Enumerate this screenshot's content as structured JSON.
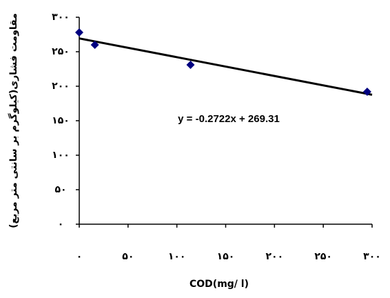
{
  "chart_data": {
    "type": "scatter",
    "xlabel": "COD(mg/ l)",
    "ylabel": "مقاومت فشاری(کیلوگرم بر سانتی متر مربع)",
    "series": [
      {
        "color": "#000080",
        "x": [
          0,
          16,
          114,
          295
        ],
        "values": [
          278,
          260,
          231,
          192
        ]
      }
    ],
    "trendline": {
      "slope": -0.2722,
      "intercept": 269.31,
      "label": "y = -0.2722x + 269.31",
      "color": "#000000"
    },
    "xlim": [
      0,
      300
    ],
    "xticks": [
      {
        "value": 0,
        "label": "۰"
      },
      {
        "value": 50,
        "label": "۵۰"
      },
      {
        "value": 100,
        "label": "۱۰۰"
      },
      {
        "value": 150,
        "label": "۱۵۰"
      },
      {
        "value": 200,
        "label": "۲۰۰"
      },
      {
        "value": 250,
        "label": "۲۵۰"
      },
      {
        "value": 300,
        "label": "۳۰۰"
      }
    ],
    "ylim": [
      0,
      300
    ],
    "yticks": [
      {
        "value": 0,
        "label": "۰"
      },
      {
        "value": 50,
        "label": "۵۰"
      },
      {
        "value": 100,
        "label": "۱۰۰"
      },
      {
        "value": 150,
        "label": "۱۵۰"
      },
      {
        "value": 200,
        "label": "۲۰۰"
      },
      {
        "value": 250,
        "label": "۲۵۰"
      },
      {
        "value": 300,
        "label": "۳۰۰"
      }
    ],
    "grid": false
  }
}
